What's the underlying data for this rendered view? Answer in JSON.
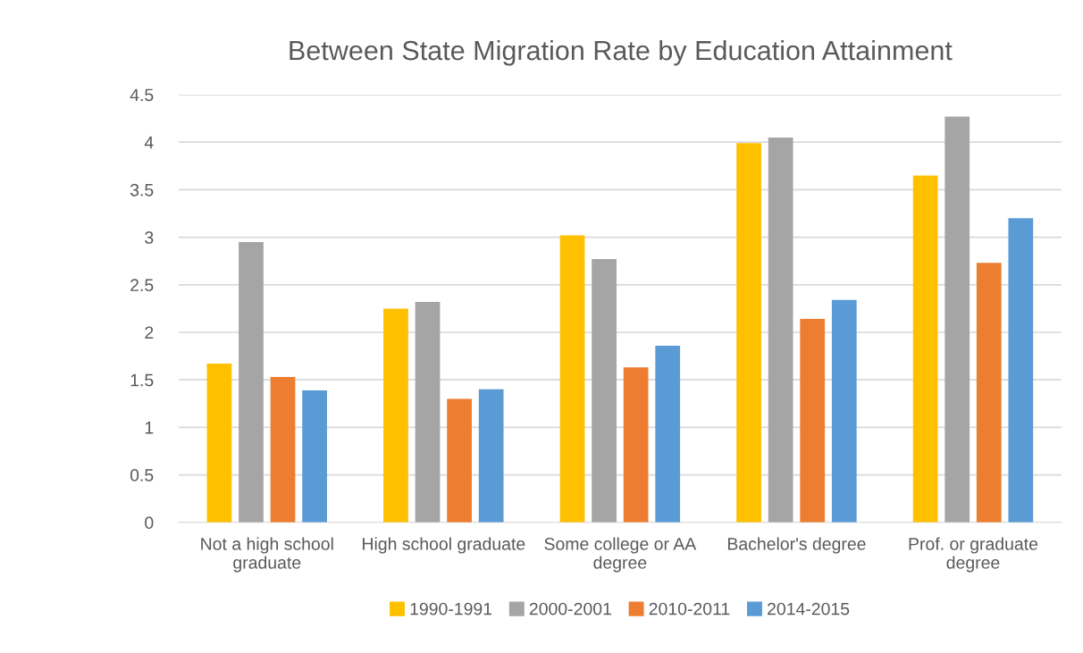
{
  "chart_data": {
    "type": "bar",
    "title": "Between State Migration Rate by Education Attainment",
    "categories": [
      "Not a high school\ngraduate",
      "High school graduate",
      "Some college or AA\ndegree",
      "Bachelor's degree",
      "Prof. or graduate\ndegree"
    ],
    "series": [
      {
        "name": "1990-1991",
        "color": "#ffc000",
        "values": [
          1.67,
          2.25,
          3.02,
          3.99,
          3.65
        ]
      },
      {
        "name": "2000-2001",
        "color": "#a5a5a5",
        "values": [
          2.95,
          2.32,
          2.77,
          4.05,
          4.27
        ]
      },
      {
        "name": "2010-2011",
        "color": "#ed7d31",
        "values": [
          1.53,
          1.3,
          1.63,
          2.14,
          2.73
        ]
      },
      {
        "name": "2014-2015",
        "color": "#5b9bd5",
        "values": [
          1.39,
          1.4,
          1.86,
          2.34,
          3.2
        ]
      }
    ],
    "ylim": [
      0,
      4.5
    ],
    "yticks": [
      0,
      0.5,
      1,
      1.5,
      2,
      2.5,
      3,
      3.5,
      4,
      4.5
    ],
    "grid": "y",
    "legend": "bottom"
  }
}
